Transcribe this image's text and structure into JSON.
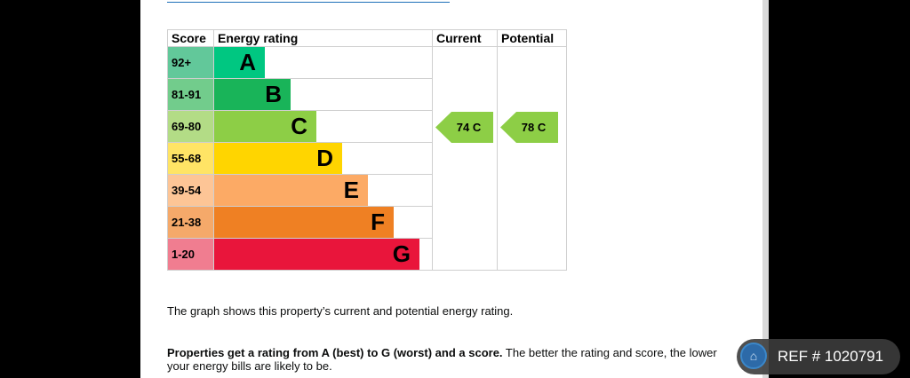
{
  "table": {
    "headers": [
      "Score",
      "Energy rating",
      "Current",
      "Potential"
    ],
    "rows": [
      {
        "score": "92+",
        "letter": "A",
        "color": "#00c781",
        "score_color": "#62c89a"
      },
      {
        "score": "81-91",
        "letter": "B",
        "color": "#19b459",
        "score_color": "#72cc8c"
      },
      {
        "score": "69-80",
        "letter": "C",
        "color": "#8dce46",
        "score_color": "#b3dc86"
      },
      {
        "score": "55-68",
        "letter": "D",
        "color": "#ffd500",
        "score_color": "#ffe465"
      },
      {
        "score": "39-54",
        "letter": "E",
        "color": "#fcaa65",
        "score_color": "#fdc596"
      },
      {
        "score": "21-38",
        "letter": "F",
        "color": "#ef8023",
        "score_color": "#f5a96a"
      },
      {
        "score": "1-20",
        "letter": "G",
        "color": "#e9153b",
        "score_color": "#f07d90"
      }
    ],
    "current": {
      "label": "74 C",
      "score": 74,
      "band": "C"
    },
    "potential": {
      "label": "78 C",
      "score": 78,
      "band": "C"
    }
  },
  "text": {
    "graph_desc": "The graph shows this property’s current and potential energy rating.",
    "rating_bold": "Properties get a rating from A (best) to G (worst) and a score.",
    "rating_rest": " The better the rating and score, the lower your energy bills are likely to be."
  },
  "ref_badge": {
    "label": "REF # 1020791",
    "icon": "home-icon"
  }
}
